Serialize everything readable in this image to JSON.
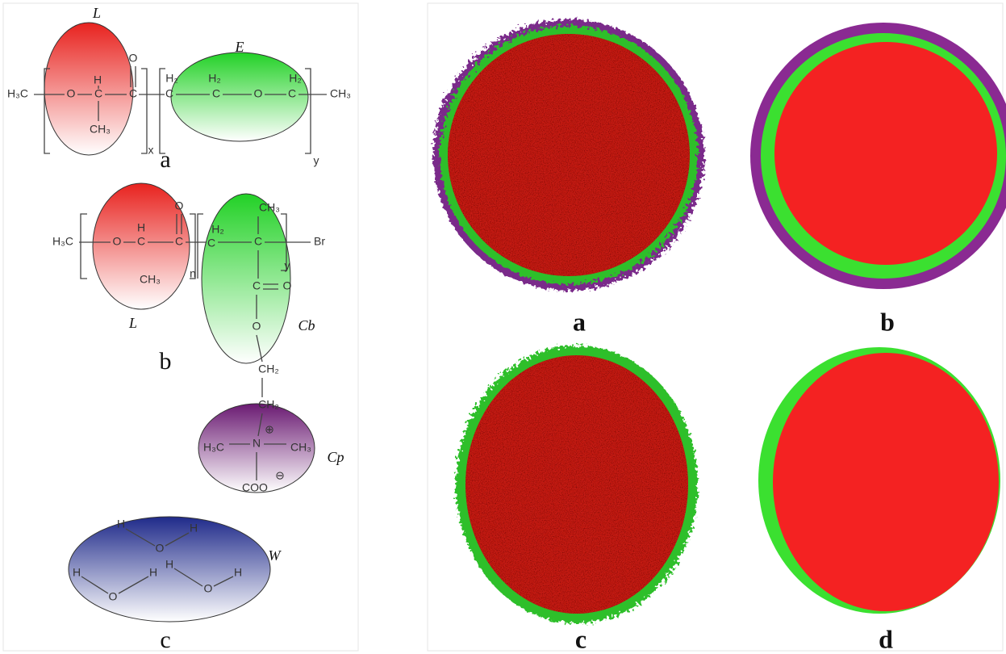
{
  "panel_left": {
    "structure_a": {
      "label": "a",
      "block_1": "L",
      "block_2": "E",
      "atoms": [
        "H₃C",
        "O",
        "H",
        "C",
        "CH₃",
        "C",
        "O",
        "x",
        "H₂",
        "C",
        "H₂",
        "C",
        "O",
        "H₂",
        "C",
        "CH₃",
        "y"
      ]
    },
    "structure_b": {
      "label": "b",
      "block_1": "L",
      "block_2": "Cb",
      "block_3": "Cp",
      "atoms": [
        "H₃C",
        "O",
        "H",
        "C",
        "CH₃",
        "C",
        "O",
        "n",
        "H₂",
        "C",
        "CH₃",
        "C",
        "Br",
        "y",
        "C",
        "O",
        "O",
        "CH₂",
        "CH₂",
        "N",
        "⊕",
        "H₃C",
        "CH₃",
        "COO",
        "⊖"
      ]
    },
    "structure_c": {
      "label": "c",
      "block_1": "W",
      "atoms": [
        "H",
        "O",
        "H",
        "H",
        "O",
        "H",
        "H",
        "O",
        "H"
      ]
    }
  },
  "panel_right": {
    "labels": [
      "a",
      "b",
      "c",
      "d"
    ]
  }
}
